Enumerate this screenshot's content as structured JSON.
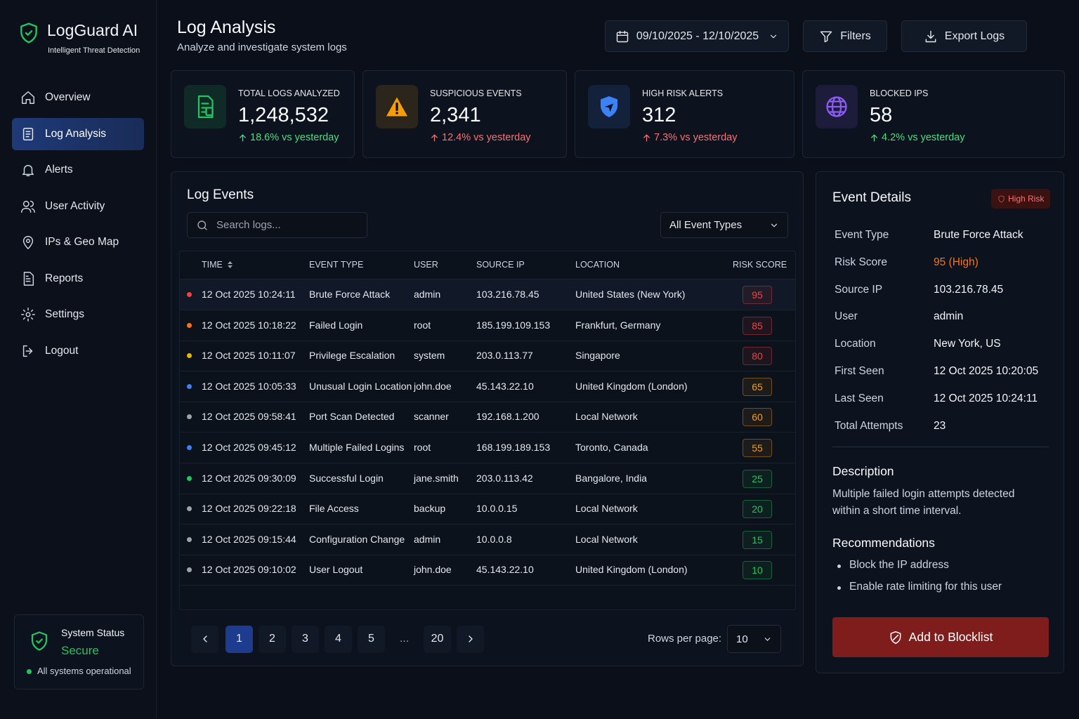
{
  "sidebar": {
    "brand": "LogGuard AI",
    "tagline": "Intelligent Threat Detection",
    "nav": [
      "Overview",
      "Log Analysis",
      "Alerts",
      "User Activity",
      "IPs & Geo Map",
      "Reports",
      "Settings",
      "Logout"
    ]
  },
  "status": {
    "title": "System Status",
    "state": "Secure",
    "note": "All systems operational"
  },
  "header": {
    "title": "Log Analysis",
    "subtitle": "Analyze and investigate system logs",
    "date_range": "09/10/2025 - 12/10/2025",
    "filters": "Filters",
    "export": "Export Logs"
  },
  "stats": [
    {
      "label": "TOTAL LOGS ANALYZED",
      "value": "1,248,532",
      "change": "18.6% vs yesterday",
      "color": "#22c55e",
      "change_color": "#4ade80"
    },
    {
      "label": "SUSPICIOUS EVENTS",
      "value": "2,341",
      "change": "12.4% vs yesterday",
      "color": "#f59e0b",
      "change_color": "#f87171"
    },
    {
      "label": "HIGH RISK ALERTS",
      "value": "312",
      "change": "7.3% vs yesterday",
      "color": "#3b82f6",
      "change_color": "#f87171"
    },
    {
      "label": "BLOCKED IPS",
      "value": "58",
      "change": "4.2% vs yesterday",
      "color": "#8b5cf6",
      "change_color": "#4ade80"
    }
  ],
  "log_events": {
    "title": "Log Events",
    "search_placeholder": "Search logs...",
    "type_filter": "All Event Types",
    "columns": [
      "TIME",
      "EVENT TYPE",
      "USER",
      "SOURCE IP",
      "LOCATION",
      "RISK SCORE"
    ],
    "rows": [
      {
        "time": "12 Oct 2025 10:24:11",
        "event_type": "Brute Force Attack",
        "user": "admin",
        "source_ip": "103.216.78.45",
        "location": "United States (New York)",
        "risk_score": 95,
        "color": "#ef4444"
      },
      {
        "time": "12 Oct 2025 10:18:22",
        "event_type": "Failed Login",
        "user": "root",
        "source_ip": "185.199.109.153",
        "location": "Frankfurt, Germany",
        "risk_score": 85,
        "color": "#f97316"
      },
      {
        "time": "12 Oct 2025 10:11:07",
        "event_type": "Privilege Escalation",
        "user": "system",
        "source_ip": "203.0.113.77",
        "location": "Singapore",
        "risk_score": 80,
        "color": "#eab308"
      },
      {
        "time": "12 Oct 2025 10:05:33",
        "event_type": "Unusual Login Location",
        "user": "john.doe",
        "source_ip": "45.143.22.10",
        "location": "United Kingdom (London)",
        "risk_score": 65,
        "color": "#3b82f6"
      },
      {
        "time": "12 Oct 2025 09:58:41",
        "event_type": "Port Scan Detected",
        "user": "scanner",
        "source_ip": "192.168.1.200",
        "location": "Local Network",
        "risk_score": 60,
        "color": "#9ca3af"
      },
      {
        "time": "12 Oct 2025 09:45:12",
        "event_type": "Multiple Failed Logins",
        "user": "root",
        "source_ip": "168.199.189.153",
        "location": "Toronto, Canada",
        "risk_score": 55,
        "color": "#3b82f6"
      },
      {
        "time": "12 Oct 2025 09:30:09",
        "event_type": "Successful Login",
        "user": "jane.smith",
        "source_ip": "203.0.113.42",
        "location": "Bangalore, India",
        "risk_score": 25,
        "color": "#22c55e"
      },
      {
        "time": "12 Oct 2025 09:22:18",
        "event_type": "File Access",
        "user": "backup",
        "source_ip": "10.0.0.15",
        "location": "Local Network",
        "risk_score": 20,
        "color": "#9ca3af"
      },
      {
        "time": "12 Oct 2025 09:15:44",
        "event_type": "Configuration Change",
        "user": "admin",
        "source_ip": "10.0.0.8",
        "location": "Local Network",
        "risk_score": 15,
        "color": "#9ca3af"
      },
      {
        "time": "12 Oct 2025 09:10:02",
        "event_type": "User Logout",
        "user": "john.doe",
        "source_ip": "45.143.22.10",
        "location": "United Kingdom (London)",
        "risk_score": 10,
        "color": "#9ca3af"
      }
    ]
  },
  "pagination": {
    "pages": [
      1,
      2,
      3,
      4,
      5,
      "...",
      20
    ],
    "rows_per_page_label": "Rows per page:",
    "rows_per_page": 10
  },
  "details": {
    "title": "Event Details",
    "badge": "High Risk",
    "fields": [
      {
        "label": "Event Type",
        "value": "Brute Force Attack"
      },
      {
        "label": "Risk Score",
        "value": "95 (High)"
      },
      {
        "label": "Source IP",
        "value": "103.216.78.45"
      },
      {
        "label": "User",
        "value": "admin"
      },
      {
        "label": "Location",
        "value": "New York, US"
      },
      {
        "label": "First Seen",
        "value": "12 Oct 2025 10:20:05"
      },
      {
        "label": "Last Seen",
        "value": "12 Oct 2025 10:24:11"
      },
      {
        "label": "Total Attempts",
        "value": "23"
      }
    ],
    "description_title": "Description",
    "description": "Multiple failed login attempts detected within a short time interval.",
    "recommendations_title": "Recommendations",
    "recommendations": [
      "Block the IP address",
      "Enable rate limiting for this user"
    ],
    "action": "Add to Blocklist"
  }
}
